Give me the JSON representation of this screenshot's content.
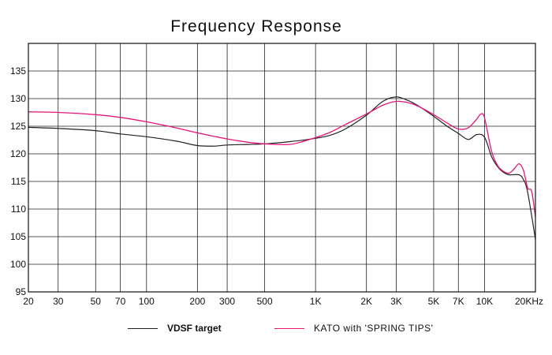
{
  "chart_data": {
    "type": "line",
    "title": "Frequency Response",
    "xlabel": "",
    "ylabel": "",
    "x_scale": "log",
    "xlim": [
      20,
      20000
    ],
    "ylim": [
      95,
      140
    ],
    "x_ticks": [
      {
        "value": 20,
        "label": "20"
      },
      {
        "value": 30,
        "label": "30"
      },
      {
        "value": 50,
        "label": "50"
      },
      {
        "value": 70,
        "label": "70"
      },
      {
        "value": 100,
        "label": "100"
      },
      {
        "value": 200,
        "label": "200"
      },
      {
        "value": 300,
        "label": "300"
      },
      {
        "value": 500,
        "label": "500"
      },
      {
        "value": 1000,
        "label": "1K"
      },
      {
        "value": 2000,
        "label": "2K"
      },
      {
        "value": 3000,
        "label": "3K"
      },
      {
        "value": 5000,
        "label": "5K"
      },
      {
        "value": 7000,
        "label": "7K"
      },
      {
        "value": 10000,
        "label": "10K"
      },
      {
        "value": 20000,
        "label": "20KHz"
      }
    ],
    "y_ticks": [
      95,
      100,
      105,
      110,
      115,
      120,
      125,
      130,
      135
    ],
    "grid": true,
    "legend_position": "bottom",
    "series": [
      {
        "name": "VDSF target",
        "color": "#222222",
        "points": [
          [
            20,
            124.8
          ],
          [
            30,
            124.6
          ],
          [
            50,
            124.2
          ],
          [
            70,
            123.6
          ],
          [
            100,
            123.1
          ],
          [
            150,
            122.3
          ],
          [
            200,
            121.5
          ],
          [
            250,
            121.4
          ],
          [
            300,
            121.6
          ],
          [
            400,
            121.7
          ],
          [
            500,
            121.8
          ],
          [
            700,
            122.2
          ],
          [
            900,
            122.6
          ],
          [
            1200,
            123.3
          ],
          [
            1500,
            124.5
          ],
          [
            2000,
            127.0
          ],
          [
            2500,
            129.5
          ],
          [
            3000,
            130.3
          ],
          [
            3500,
            129.7
          ],
          [
            4000,
            128.8
          ],
          [
            5000,
            126.8
          ],
          [
            6000,
            125.0
          ],
          [
            7000,
            123.7
          ],
          [
            8000,
            122.6
          ],
          [
            9000,
            123.5
          ],
          [
            10000,
            123.0
          ],
          [
            11000,
            119.5
          ],
          [
            12000,
            117.6
          ],
          [
            13000,
            116.6
          ],
          [
            14000,
            116.2
          ],
          [
            16000,
            116.2
          ],
          [
            17000,
            115.3
          ],
          [
            18000,
            113.0
          ],
          [
            20000,
            104.5
          ]
        ]
      },
      {
        "name": "KATO with 'SPRING TIPS'",
        "color": "#e3147a",
        "points": [
          [
            20,
            127.6
          ],
          [
            30,
            127.5
          ],
          [
            50,
            127.1
          ],
          [
            70,
            126.6
          ],
          [
            100,
            125.8
          ],
          [
            150,
            124.7
          ],
          [
            200,
            123.8
          ],
          [
            300,
            122.7
          ],
          [
            400,
            122.1
          ],
          [
            500,
            121.8
          ],
          [
            700,
            121.7
          ],
          [
            900,
            122.5
          ],
          [
            1200,
            123.8
          ],
          [
            1500,
            125.3
          ],
          [
            2000,
            127.2
          ],
          [
            2500,
            128.8
          ],
          [
            3000,
            129.5
          ],
          [
            3500,
            129.3
          ],
          [
            4000,
            128.7
          ],
          [
            5000,
            127.1
          ],
          [
            6000,
            125.6
          ],
          [
            7000,
            124.5
          ],
          [
            8000,
            124.7
          ],
          [
            9000,
            126.3
          ],
          [
            9500,
            127.2
          ],
          [
            10000,
            126.5
          ],
          [
            11000,
            120.5
          ],
          [
            12000,
            117.8
          ],
          [
            13000,
            116.8
          ],
          [
            14000,
            116.5
          ],
          [
            15000,
            117.3
          ],
          [
            16000,
            118.2
          ],
          [
            17000,
            117.0
          ],
          [
            18000,
            113.8
          ],
          [
            19000,
            113.2
          ],
          [
            20000,
            108.5
          ]
        ]
      }
    ]
  }
}
